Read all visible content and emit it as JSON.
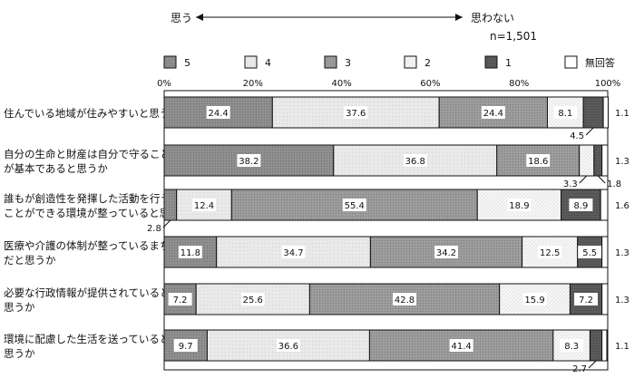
{
  "header": {
    "left": "思う",
    "right": "思わない",
    "n": "n=1,501"
  },
  "colors": {
    "5": "#8c8c8c",
    "4": "#e6e6e6",
    "3": "#999999",
    "2": "#fafafa",
    "1": "#595959",
    "none": "#ffffff"
  },
  "chart_data": {
    "type": "bar",
    "orientation": "horizontal",
    "stacked": true,
    "xlim": [
      0,
      100
    ],
    "ticks": [
      "0%",
      "20%",
      "40%",
      "60%",
      "80%",
      "100%"
    ],
    "legend": [
      "5",
      "4",
      "3",
      "2",
      "1",
      "無回答"
    ],
    "categories": [
      [
        "住んでいる地域が住みやすいと思うか"
      ],
      [
        "自分の生命と財産は自分で守ること",
        "が基本であると思うか"
      ],
      [
        "誰もが創造性を発揮した活動を行う",
        "ことができる環境が整っていると思うか"
      ],
      [
        "医療や介護の体制が整っているまち",
        "だと思うか"
      ],
      [
        "必要な行政情報が提供されていると",
        "思うか"
      ],
      [
        "環境に配慮した生活を送っていると",
        "思うか"
      ]
    ],
    "series": [
      {
        "name": "5",
        "values": [
          24.4,
          38.2,
          2.8,
          11.8,
          7.2,
          9.7
        ]
      },
      {
        "name": "4",
        "values": [
          37.6,
          36.8,
          12.4,
          34.7,
          25.6,
          36.6
        ]
      },
      {
        "name": "3",
        "values": [
          24.4,
          18.6,
          55.4,
          34.2,
          42.8,
          41.4
        ]
      },
      {
        "name": "2",
        "values": [
          8.1,
          3.3,
          18.9,
          12.5,
          15.9,
          8.3
        ]
      },
      {
        "name": "1",
        "values": [
          4.5,
          1.8,
          8.9,
          5.5,
          7.2,
          2.7
        ]
      },
      {
        "name": "無回答",
        "values": [
          1.1,
          1.3,
          1.6,
          1.3,
          1.3,
          1.1
        ]
      }
    ]
  }
}
